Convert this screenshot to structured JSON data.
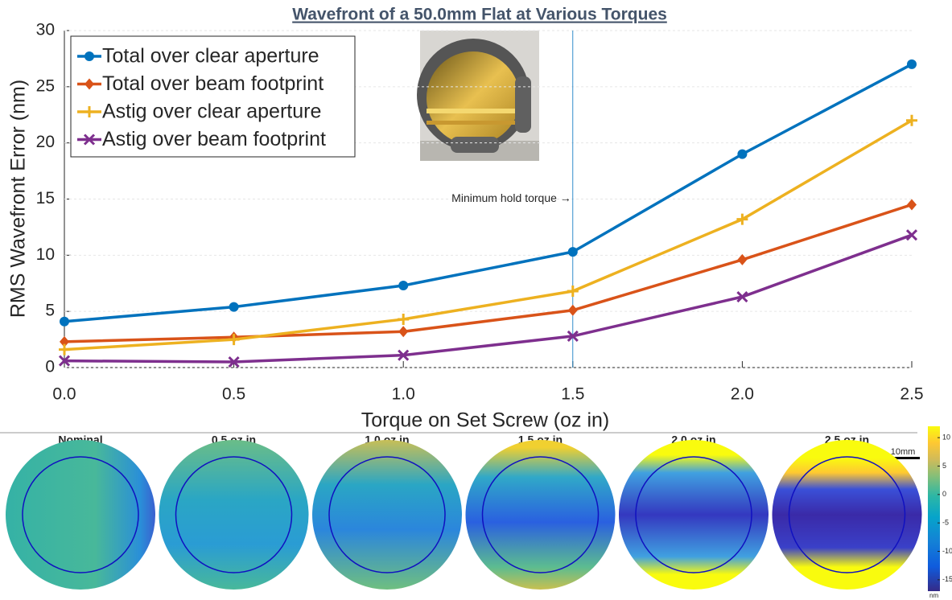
{
  "chart_data": {
    "type": "line",
    "title": "Wavefront of a 50.0mm Flat at Various Torques",
    "xlabel": "Torque on Set Screw (oz in)",
    "ylabel": "RMS Wavefront Error (nm)",
    "x": [
      0,
      0.5,
      1,
      1.5,
      2,
      2.5
    ],
    "xlim": [
      0,
      2.5
    ],
    "xticks": [
      {
        "value": 0,
        "label": "0.0"
      },
      0.5,
      {
        "value": 1,
        "label": "1.0"
      },
      1.5,
      {
        "value": 2,
        "label": "2.0"
      },
      2.5
    ],
    "ylim": [
      0,
      30
    ],
    "yticks": [
      0,
      5,
      10,
      15,
      20,
      25,
      30
    ],
    "legend": "upper-left",
    "series": [
      {
        "name": "Total over clear aperture",
        "color": "#0072bd",
        "marker": "circle",
        "values": [
          4.1,
          5.4,
          7.3,
          10.3,
          19.0,
          27.0
        ]
      },
      {
        "name": "Total over beam footprint",
        "color": "#d95319",
        "marker": "diamond",
        "values": [
          2.3,
          2.7,
          3.2,
          5.1,
          9.6,
          14.5
        ]
      },
      {
        "name": "Astig over clear aperture",
        "color": "#edb120",
        "marker": "plus",
        "values": [
          1.6,
          2.5,
          4.3,
          6.8,
          13.2,
          22.0
        ]
      },
      {
        "name": "Astig over beam footprint",
        "color": "#7e2f8e",
        "marker": "cross",
        "values": [
          0.6,
          0.5,
          1.1,
          2.8,
          6.3,
          11.8
        ]
      }
    ],
    "annotation": {
      "text": "Minimum hold torque →",
      "x": 1.5,
      "y": 15
    }
  },
  "maps": {
    "labels": [
      "Nominal",
      "0.5 oz in",
      "1.0 oz in",
      "1.5 oz in",
      "2.0 oz in",
      "2.5 oz in"
    ],
    "scale_bar": "10mm",
    "colorbar": {
      "lim": [
        -17,
        12
      ],
      "ticks": [
        10,
        5,
        0,
        -5,
        -10,
        -15
      ],
      "unit": "nm"
    }
  }
}
